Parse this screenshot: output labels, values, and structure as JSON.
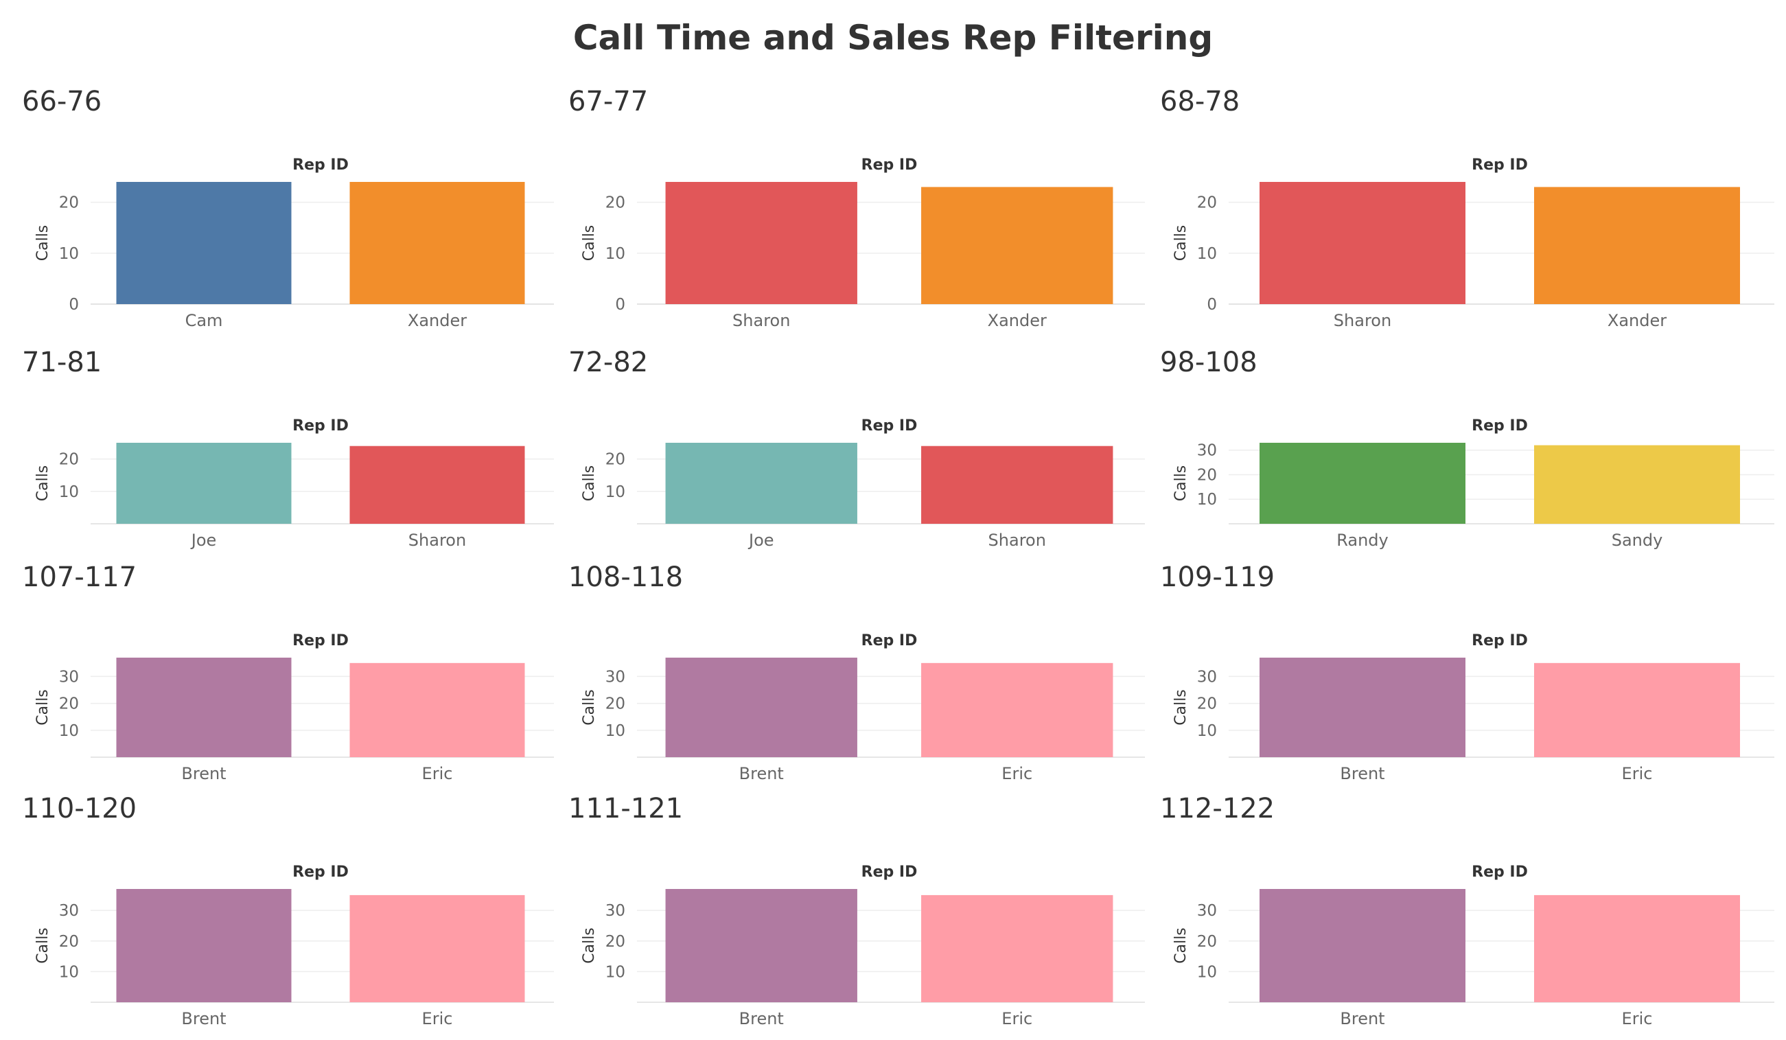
{
  "title": "Call Time and Sales Rep Filtering",
  "colors": {
    "Cam": "#4e79a7",
    "Xander": "#f28e2b",
    "Sharon": "#e15759",
    "Joe": "#76b7b2",
    "Randy": "#59a14f",
    "Sandy": "#edc948",
    "Brent": "#b07aa1",
    "Eric": "#ff9da7"
  },
  "chart_data": [
    {
      "type": "bar",
      "title": "66-76",
      "column_header": "Rep ID",
      "ylabel": "Calls",
      "categories": [
        "Cam",
        "Xander"
      ],
      "values": [
        24,
        24
      ],
      "ylim": [
        0,
        24
      ],
      "yticks": [
        0,
        10,
        20
      ]
    },
    {
      "type": "bar",
      "title": "67-77",
      "column_header": "Rep ID",
      "ylabel": "Calls",
      "categories": [
        "Sharon",
        "Xander"
      ],
      "values": [
        24,
        23
      ],
      "ylim": [
        0,
        24
      ],
      "yticks": [
        0,
        10,
        20
      ]
    },
    {
      "type": "bar",
      "title": "68-78",
      "column_header": "Rep ID",
      "ylabel": "Calls",
      "categories": [
        "Sharon",
        "Xander"
      ],
      "values": [
        24,
        23
      ],
      "ylim": [
        0,
        24
      ],
      "yticks": [
        0,
        10,
        20
      ]
    },
    {
      "type": "bar",
      "title": "71-81",
      "column_header": "Rep ID",
      "ylabel": "Calls",
      "categories": [
        "Joe",
        "Sharon"
      ],
      "values": [
        25,
        24
      ],
      "ylim": [
        0,
        25
      ],
      "yticks": [
        10,
        20
      ]
    },
    {
      "type": "bar",
      "title": "72-82",
      "column_header": "Rep ID",
      "ylabel": "Calls",
      "categories": [
        "Joe",
        "Sharon"
      ],
      "values": [
        25,
        24
      ],
      "ylim": [
        0,
        25
      ],
      "yticks": [
        10,
        20
      ]
    },
    {
      "type": "bar",
      "title": "98-108",
      "column_header": "Rep ID",
      "ylabel": "Calls",
      "categories": [
        "Randy",
        "Sandy"
      ],
      "values": [
        33,
        32
      ],
      "ylim": [
        0,
        33
      ],
      "yticks": [
        10,
        20,
        30
      ]
    },
    {
      "type": "bar",
      "title": "107-117",
      "column_header": "Rep ID",
      "ylabel": "Calls",
      "categories": [
        "Brent",
        "Eric"
      ],
      "values": [
        37,
        35
      ],
      "ylim": [
        0,
        37
      ],
      "yticks": [
        10,
        20,
        30
      ]
    },
    {
      "type": "bar",
      "title": "108-118",
      "column_header": "Rep ID",
      "ylabel": "Calls",
      "categories": [
        "Brent",
        "Eric"
      ],
      "values": [
        37,
        35
      ],
      "ylim": [
        0,
        37
      ],
      "yticks": [
        10,
        20,
        30
      ]
    },
    {
      "type": "bar",
      "title": "109-119",
      "column_header": "Rep ID",
      "ylabel": "Calls",
      "categories": [
        "Brent",
        "Eric"
      ],
      "values": [
        37,
        35
      ],
      "ylim": [
        0,
        37
      ],
      "yticks": [
        10,
        20,
        30
      ]
    },
    {
      "type": "bar",
      "title": "110-120",
      "column_header": "Rep ID",
      "ylabel": "Calls",
      "categories": [
        "Brent",
        "Eric"
      ],
      "values": [
        37,
        35
      ],
      "ylim": [
        0,
        37
      ],
      "yticks": [
        10,
        20,
        30
      ]
    },
    {
      "type": "bar",
      "title": "111-121",
      "column_header": "Rep ID",
      "ylabel": "Calls",
      "categories": [
        "Brent",
        "Eric"
      ],
      "values": [
        37,
        35
      ],
      "ylim": [
        0,
        37
      ],
      "yticks": [
        10,
        20,
        30
      ]
    },
    {
      "type": "bar",
      "title": "112-122",
      "column_header": "Rep ID",
      "ylabel": "Calls",
      "categories": [
        "Brent",
        "Eric"
      ],
      "values": [
        37,
        35
      ],
      "ylim": [
        0,
        37
      ],
      "yticks": [
        10,
        20,
        30
      ]
    }
  ]
}
